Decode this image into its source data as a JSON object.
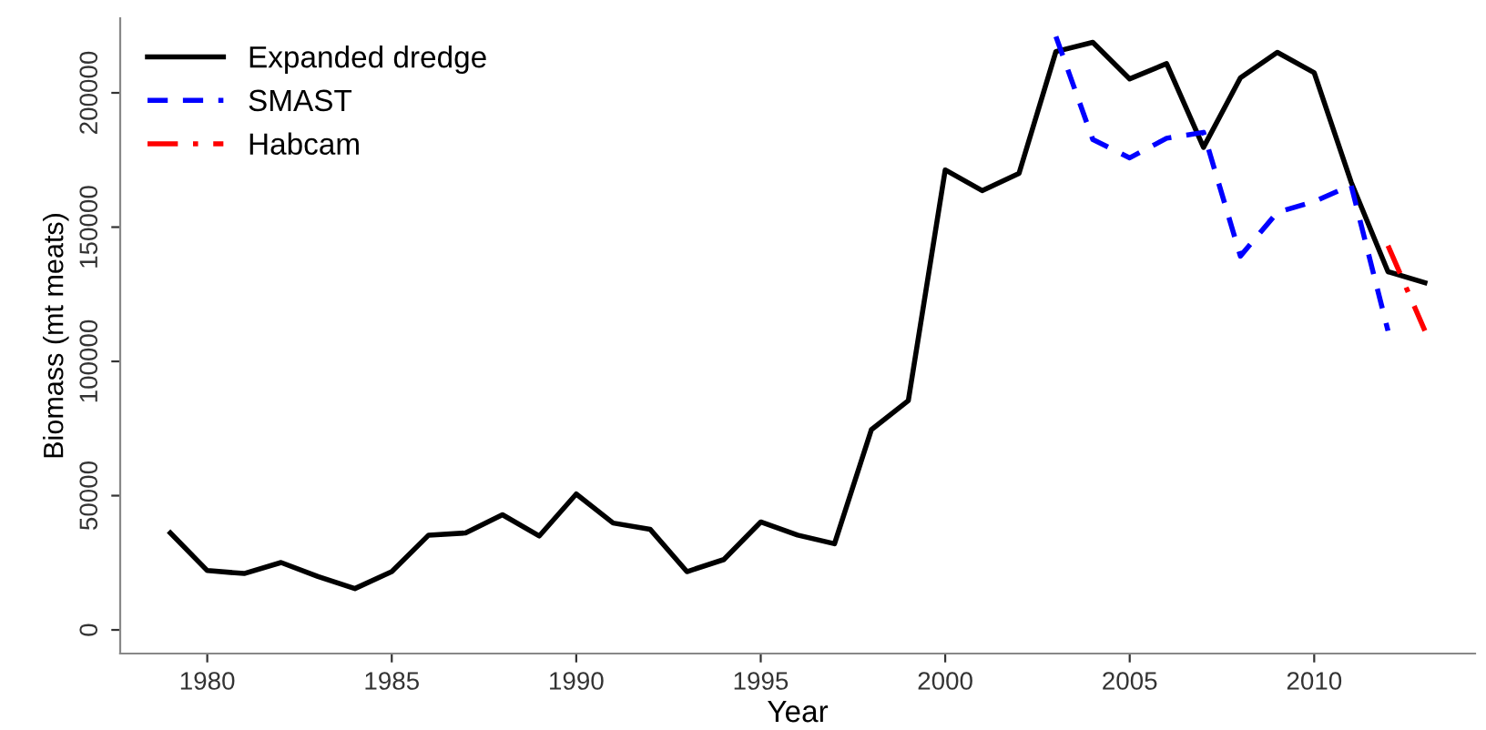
{
  "chart_data": {
    "type": "line",
    "xlabel": "Year",
    "ylabel": "Biomass (mt meats)",
    "xlim": [
      1977.64,
      2014.36
    ],
    "ylim": [
      -8800,
      227800
    ],
    "xticks": [
      1980,
      1985,
      1990,
      1995,
      2000,
      2005,
      2010
    ],
    "yticks": [
      0,
      50000,
      100000,
      150000,
      200000
    ],
    "grid": false,
    "legend": "top left",
    "series": [
      {
        "name": "Expanded dredge",
        "color": "#000000",
        "line_style": "solid",
        "x": [
          1979,
          1980,
          1981,
          1982,
          1983,
          1984,
          1985,
          1986,
          1987,
          1988,
          1989,
          1990,
          1991,
          1992,
          1993,
          1994,
          1995,
          1996,
          1997,
          1998,
          1999,
          2000,
          2001,
          2002,
          2003,
          2004,
          2005,
          2006,
          2007,
          2008,
          2009,
          2010,
          2011,
          2012,
          2013
        ],
        "values": [
          36100,
          22100,
          21000,
          25100,
          19900,
          15400,
          21700,
          35300,
          36100,
          42900,
          35000,
          50600,
          39800,
          37500,
          21700,
          26200,
          40200,
          35300,
          32100,
          74600,
          85400,
          171300,
          163600,
          170000,
          215400,
          218800,
          205200,
          210900,
          179700,
          205600,
          215100,
          207500,
          166800,
          133400,
          129300
        ]
      },
      {
        "name": "SMAST",
        "color": "#0000ff",
        "line_style": "dashed",
        "x": [
          2003,
          2004,
          2005,
          2006,
          2007,
          2008,
          2009,
          2010,
          2011,
          2012
        ],
        "values": [
          221000,
          182600,
          175800,
          183100,
          185300,
          139200,
          155500,
          159500,
          165600,
          111400
        ]
      },
      {
        "name": "Habcam",
        "color": "#ff0000",
        "line_style": "dashdot",
        "x": [
          2012,
          2013
        ],
        "values": [
          143100,
          111400
        ]
      }
    ]
  }
}
